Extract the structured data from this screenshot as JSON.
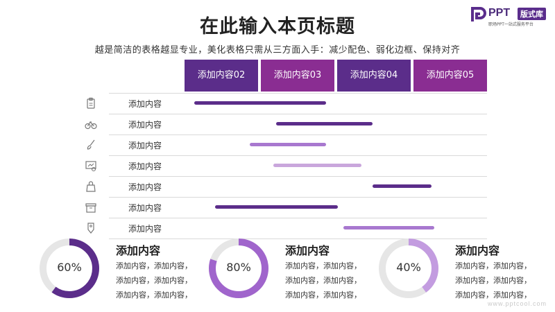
{
  "title": "在此输入本页标题",
  "subtitle": "越是简洁的表格越显专业，美化表格只需从三方面入手：减少配色、弱化边框、保持对齐",
  "logo": {
    "ppt": "PPT",
    "badge": "版式库",
    "tagline": "职场PPT一站式服务平台"
  },
  "colors": {
    "dark": "#5b2d8a",
    "mid": "#8a2d92",
    "light": "#a878cf",
    "lighter": "#c9a6dc",
    "track": "#e6e6e6"
  },
  "columns": [
    {
      "label": "添加内容02",
      "color": "#5b2d8a"
    },
    {
      "label": "添加内容03",
      "color": "#8a2d92"
    },
    {
      "label": "添加内容04",
      "color": "#5b2d8a"
    },
    {
      "label": "添加内容05",
      "color": "#8a2d92"
    }
  ],
  "rows": [
    {
      "label": "添加内容",
      "icon": "clipboard-icon",
      "start": 0.0,
      "end": 0.45,
      "color": "#5b2d8a"
    },
    {
      "label": "添加内容",
      "icon": "bicycle-icon",
      "start": 0.28,
      "end": 0.61,
      "color": "#5b2d8a"
    },
    {
      "label": "添加内容",
      "icon": "brush-icon",
      "start": 0.19,
      "end": 0.45,
      "color": "#a878cf"
    },
    {
      "label": "添加内容",
      "icon": "screen-icon",
      "start": 0.27,
      "end": 0.57,
      "color": "#c9a6dc"
    },
    {
      "label": "添加内容",
      "icon": "bag-icon",
      "start": 0.61,
      "end": 0.81,
      "color": "#5b2d8a"
    },
    {
      "label": "添加内容",
      "icon": "box-icon",
      "start": 0.07,
      "end": 0.49,
      "color": "#5b2d8a"
    },
    {
      "label": "添加内容",
      "icon": "tag-icon",
      "start": 0.51,
      "end": 0.82,
      "color": "#a878cf"
    }
  ],
  "cards": [
    {
      "percent": 60,
      "percent_label": "60%",
      "color": "#5b2d8a",
      "title": "添加内容",
      "lines": [
        "添加内容，添加内容，",
        "添加内容，添加内容，",
        "添加内容，添加内容，"
      ]
    },
    {
      "percent": 80,
      "percent_label": "80%",
      "color": "#a065cc",
      "title": "添加内容",
      "lines": [
        "添加内容，添加内容，",
        "添加内容，添加内容，",
        "添加内容，添加内容，"
      ]
    },
    {
      "percent": 40,
      "percent_label": "40%",
      "color": "#c39ce0",
      "title": "添加内容",
      "lines": [
        "添加内容，添加内容，",
        "添加内容，添加内容，",
        "添加内容，添加内容，"
      ]
    }
  ],
  "watermark": "www.pptcool.com"
}
